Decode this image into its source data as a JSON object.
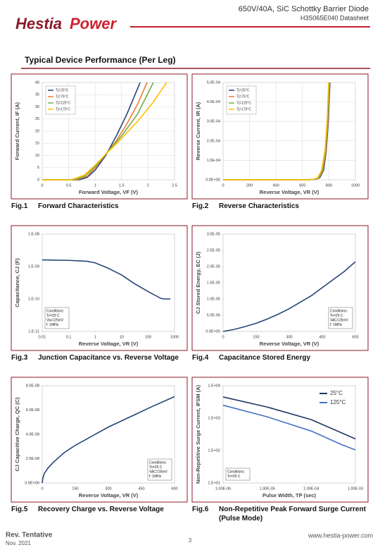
{
  "header": {
    "logo": [
      "Hestia",
      "Power"
    ],
    "title": "650V/40A, SiC Schottky Barrier Diode",
    "subtitle": "H3S065E040 Datasheet"
  },
  "section_title": "Typical Device Performance (Per Leg)",
  "chart_data": [
    {
      "type": "line",
      "figure": "Fig.1",
      "caption": "Forward Characteristics",
      "x_label": "Forward Voltage, VF (V)",
      "y_label": "Forward Current, IF (A)",
      "xlim": [
        0,
        2.5
      ],
      "xticks": [
        0,
        0.5,
        1,
        1.5,
        2,
        2.5
      ],
      "ylim": [
        0,
        40
      ],
      "yticks": [
        0,
        5,
        10,
        15,
        20,
        25,
        30,
        35,
        40
      ],
      "grid": true,
      "legend": "upper left",
      "series": [
        {
          "name": "Tj=25°C",
          "color": "#264478",
          "x": [
            0,
            0.7,
            0.85,
            1.0,
            1.2,
            1.4,
            1.6,
            1.85
          ],
          "values": [
            0,
            0,
            1,
            4,
            10,
            18,
            27,
            40
          ]
        },
        {
          "name": "Tj=75°C",
          "color": "#ed7d31",
          "x": [
            0,
            0.65,
            0.85,
            1.0,
            1.2,
            1.4,
            1.6,
            1.8,
            1.98
          ],
          "values": [
            0,
            0,
            1.5,
            5,
            10.5,
            16,
            23,
            31,
            40
          ]
        },
        {
          "name": "Tj=125°C",
          "color": "#70ad47",
          "x": [
            0,
            0.6,
            0.8,
            1.0,
            1.2,
            1.5,
            1.8,
            2.1
          ],
          "values": [
            0,
            0,
            1.5,
            5.5,
            10.5,
            18,
            27,
            40
          ]
        },
        {
          "name": "Tj=175°C",
          "color": "#ffc000",
          "x": [
            0,
            0.55,
            0.8,
            1.0,
            1.2,
            1.5,
            1.8,
            2.1,
            2.35
          ],
          "values": [
            0,
            0,
            2,
            6,
            10.5,
            17,
            24,
            32,
            40
          ]
        }
      ]
    },
    {
      "type": "line",
      "figure": "Fig.2",
      "caption": "Reverse Characteristics",
      "x_label": "Reverse Voltage, VR (V)",
      "y_label": "Reverse Current, IR (A)",
      "xlim": [
        0,
        1000
      ],
      "xticks": [
        0,
        200,
        400,
        600,
        800,
        1000
      ],
      "ylim": [
        0,
        0.0005
      ],
      "yticks": [
        {
          "value": 0,
          "label": "0.0E+00"
        },
        {
          "value": 0.0001,
          "label": "1.0E-04"
        },
        {
          "value": 0.0002,
          "label": "2.0E-04"
        },
        {
          "value": 0.0003,
          "label": "3.0E-04"
        },
        {
          "value": 0.0004,
          "label": "4.0E-04"
        },
        {
          "value": 0.0005,
          "label": "5.0E-04"
        }
      ],
      "grid": true,
      "legend": "upper left",
      "series": [
        {
          "name": "Tj=25°C",
          "color": "#264478",
          "x": [
            0,
            650,
            700,
            730,
            760,
            780,
            795,
            808
          ],
          "values": [
            0,
            0,
            3e-06,
            1e-05,
            5e-05,
            0.00015,
            0.0003,
            0.0005
          ]
        },
        {
          "name": "Tj=75°C",
          "color": "#ed7d31",
          "x": [
            0,
            640,
            695,
            725,
            755,
            777,
            792,
            805
          ],
          "values": [
            0,
            0,
            3e-06,
            1e-05,
            5e-05,
            0.00015,
            0.0003,
            0.0005
          ]
        },
        {
          "name": "Tj=125°C",
          "color": "#70ad47",
          "x": [
            0,
            630,
            690,
            720,
            750,
            773,
            789,
            802
          ],
          "values": [
            0,
            0,
            3e-06,
            1e-05,
            5e-05,
            0.00015,
            0.0003,
            0.0005
          ]
        },
        {
          "name": "Tj=175°C",
          "color": "#ffc000",
          "x": [
            0,
            620,
            685,
            715,
            745,
            770,
            786,
            798
          ],
          "values": [
            0,
            0,
            3e-06,
            1e-05,
            5e-05,
            0.00015,
            0.0003,
            0.0005
          ]
        }
      ]
    },
    {
      "type": "line",
      "figure": "Fig.3",
      "caption": "Junction Capacitance vs. Reverse Voltage",
      "x_label": "Reverse Voltage, VR (V)",
      "y_label": "Capacitance, CJ (F)",
      "xlog": true,
      "ylog": true,
      "xlim": [
        0.01,
        1000
      ],
      "xticks": [
        0.01,
        0.1,
        1,
        10,
        100,
        1000
      ],
      "ylim": [
        1e-11,
        1e-08
      ],
      "yticks": [
        {
          "value": 1e-11,
          "label": "1.E-11"
        },
        {
          "value": 1e-10,
          "label": "1.E-10"
        },
        {
          "value": 1e-09,
          "label": "1.E-09"
        },
        {
          "value": 1e-08,
          "label": "1.E-08"
        }
      ],
      "grid": false,
      "annotation": [
        "Conditions:",
        "Tc=25 C",
        "Vac=25mV",
        "f: 1MHz"
      ],
      "annotation_position": "lower left",
      "series": [
        {
          "color": "#264478",
          "x": [
            0.01,
            0.1,
            0.5,
            1,
            3,
            10,
            30,
            100,
            300,
            400,
            700
          ],
          "values": [
            1.6e-09,
            1.55e-09,
            1.45e-09,
            1.3e-09,
            9e-10,
            5.5e-10,
            3e-10,
            1.7e-10,
            1.05e-10,
            1e-10,
            1e-10
          ]
        }
      ]
    },
    {
      "type": "line",
      "figure": "Fig.4",
      "caption": "Capacitance Stored Energy",
      "x_label": "Reverse Voltage, VR (V)",
      "y_label": "CJ Stored Energy, EC (J)",
      "xlim": [
        0,
        600
      ],
      "xticks": [
        0,
        150,
        300,
        450,
        600
      ],
      "ylim": [
        0,
        3e-05
      ],
      "yticks": [
        {
          "value": 0,
          "label": "0.0E+00"
        },
        {
          "value": 5e-06,
          "label": "5.0E-06"
        },
        {
          "value": 1e-05,
          "label": "1.0E-05"
        },
        {
          "value": 1.5e-05,
          "label": "1.5E-05"
        },
        {
          "value": 2e-05,
          "label": "2.0E-05"
        },
        {
          "value": 2.5e-05,
          "label": "2.5E-05"
        },
        {
          "value": 3e-05,
          "label": "3.0E-05"
        }
      ],
      "grid": false,
      "annotation": [
        "Conditions:",
        "Tc=25 C",
        "VAC=25mV",
        "f: 1MHz"
      ],
      "annotation_position": "lower right",
      "series": [
        {
          "color": "#264478",
          "x": [
            0,
            50,
            100,
            150,
            200,
            250,
            300,
            350,
            400,
            450,
            500,
            550,
            600
          ],
          "values": [
            0,
            6e-07,
            1.5e-06,
            2.5e-06,
            3.8e-06,
            5.3e-06,
            7e-06,
            9e-06,
            1.1e-05,
            1.35e-05,
            1.6e-05,
            1.85e-05,
            2.15e-05
          ]
        }
      ]
    },
    {
      "type": "line",
      "figure": "Fig.5",
      "caption": "Recovery Charge vs. Reverse Voltage",
      "x_label": "Reverse Voltage, VR (V)",
      "y_label": "CJ Capacitive Charge, QC (C)",
      "xlim": [
        0,
        600
      ],
      "xticks": [
        0,
        150,
        300,
        450,
        600
      ],
      "ylim": [
        0,
        8e-08
      ],
      "yticks": [
        {
          "value": 0,
          "label": "0.0E+00"
        },
        {
          "value": 2e-08,
          "label": "2.0E-08"
        },
        {
          "value": 4e-08,
          "label": "4.0E-08"
        },
        {
          "value": 6e-08,
          "label": "6.0E-08"
        },
        {
          "value": 8e-08,
          "label": "8.0E-08"
        }
      ],
      "grid": false,
      "annotation": [
        "Conditions:",
        "Tc=25 C",
        "VAC=25mV",
        "f: 1MHz"
      ],
      "annotation_position": "lower right",
      "series": [
        {
          "color": "#264478",
          "x": [
            0,
            3,
            10,
            25,
            50,
            100,
            150,
            200,
            300,
            400,
            500,
            600
          ],
          "values": [
            0,
            4e-09,
            8e-09,
            1.2e-08,
            1.7e-08,
            2.5e-08,
            3.1e-08,
            3.6e-08,
            4.6e-08,
            5.45e-08,
            6.3e-08,
            7.1e-08
          ]
        }
      ]
    },
    {
      "type": "line",
      "figure": "Fig.6",
      "caption": "Non-Repetitive Peak Forward Surge Current (Pulse Mode)",
      "x_label": "Pulse Width, TP (sec)",
      "y_label": "Non-Repetitive Surge Current, IFSM (A)",
      "xlog": true,
      "ylog": true,
      "xlim": [
        1e-06,
        0.001
      ],
      "xticks": [
        {
          "value": 1e-06,
          "label": "1.00E-06"
        },
        {
          "value": 1e-05,
          "label": "1.00E-05"
        },
        {
          "value": 0.0001,
          "label": "1.00E-04"
        },
        {
          "value": 0.001,
          "label": "1.00E-03"
        }
      ],
      "ylim": [
        10,
        10000
      ],
      "yticks": [
        {
          "value": 10,
          "label": "1.E+01"
        },
        {
          "value": 100,
          "label": "1.E+02"
        },
        {
          "value": 1000,
          "label": "1.E+03"
        },
        {
          "value": 10000,
          "label": "1.E+04"
        }
      ],
      "grid": false,
      "legend": "upper right",
      "annotation": [
        "Conditions:",
        "Tc=25 C"
      ],
      "annotation_position": "lower left",
      "series": [
        {
          "name": "25°C",
          "color": "#1f3864",
          "x": [
            1e-06,
            1e-05,
            0.0001,
            0.001
          ],
          "values": [
            4500,
            2200,
            900,
            230
          ]
        },
        {
          "name": "125°C",
          "color": "#4472c4",
          "x": [
            1e-06,
            1e-05,
            0.0001,
            0.0005,
            0.001
          ],
          "values": [
            2500,
            1100,
            400,
            150,
            105
          ]
        }
      ]
    }
  ],
  "footer": {
    "revision": "Rev. Tentative",
    "date": "Nov. 2021",
    "page": 3,
    "website": "www.hestia-power.com"
  }
}
